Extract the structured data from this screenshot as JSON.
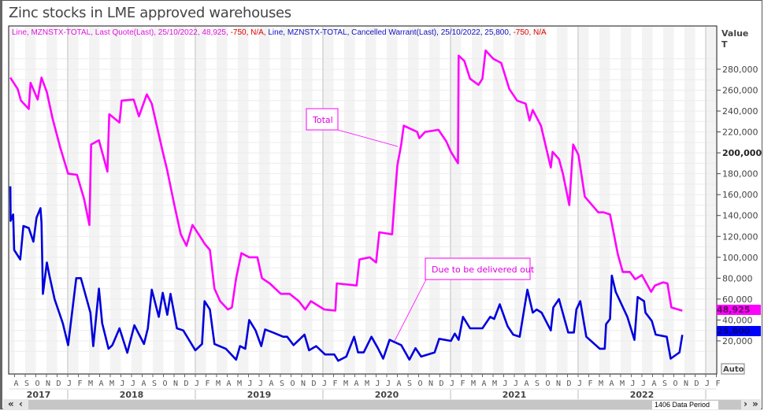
{
  "title": "Zinc stocks in LME approved warehouses",
  "legend": [
    {
      "text": "Line, MZNSTX-TOTAL, Last Quote(Last), 25/10/2022, 48,925, ",
      "color": "#e010e0"
    },
    {
      "text": "-750, N/A, ",
      "color": "#e00000"
    },
    {
      "text": "Line, MZNSTX-TOTAL, Cancelled Warrant(Last), 25/10/2022, 25,800, ",
      "color": "#1010c0"
    },
    {
      "text": "-750, N/A",
      "color": "#e00000"
    }
  ],
  "axis": {
    "title_line1": "Value",
    "title_line2": "T",
    "auto_label": "Auto"
  },
  "last_values": {
    "total": "48,925",
    "cancelled": "25,800"
  },
  "scroll": {
    "period_label": "1406 Data Period",
    "first": "«",
    "prev": "‹",
    "next": "›",
    "last": "»"
  },
  "colors": {
    "total": "#ff00ff",
    "cancelled": "#0000dd",
    "up_red": "#e00000"
  },
  "chart_data": {
    "type": "line",
    "title": "Zinc stocks in LME approved warehouses",
    "ylabel": "Value T",
    "ylim": [
      0,
      290000
    ],
    "y_ticks": [
      "20,000",
      "40,000",
      "60,000",
      "80,000",
      "100,000",
      "120,000",
      "140,000",
      "160,000",
      "180,000",
      "200,000",
      "220,000",
      "240,000",
      "260,000",
      "280,000"
    ],
    "y_tick_values": [
      20000,
      40000,
      60000,
      80000,
      100000,
      120000,
      140000,
      160000,
      180000,
      200000,
      220000,
      240000,
      260000,
      280000
    ],
    "bold_tick": "200,000",
    "x_month_labels": [
      "A",
      "S",
      "O",
      "N",
      "D",
      "J",
      "F",
      "M",
      "A",
      "M",
      "J",
      "J",
      "A",
      "S",
      "O",
      "N",
      "D",
      "J",
      "F",
      "M",
      "A",
      "M",
      "J",
      "J",
      "A",
      "S",
      "O",
      "N",
      "D",
      "J",
      "F",
      "M",
      "A",
      "M",
      "J",
      "J",
      "A",
      "S",
      "O",
      "N",
      "D",
      "J",
      "F",
      "M",
      "A",
      "M",
      "J",
      "J",
      "A",
      "S",
      "O",
      "N",
      "D",
      "J",
      "F",
      "M",
      "A",
      "M",
      "J",
      "J",
      "A",
      "S",
      "O",
      "N",
      "D",
      "J",
      "F"
    ],
    "x_month_start": "2017-08",
    "x_year_labels": [
      "2017",
      "2018",
      "2019",
      "2020",
      "2021",
      "2022"
    ],
    "grid": true,
    "annotations": [
      {
        "text": "Total",
        "series": "total",
        "date": "2020-07-30"
      },
      {
        "text": "Due to be delivered out",
        "series": "cancelled",
        "date": "2020-07-25"
      }
    ],
    "series": [
      {
        "key": "total",
        "name": "Line, MZNSTX-TOTAL, Last Quote(Last)",
        "color": "#ff00ff",
        "points": [
          [
            "2017-07-19",
            272000
          ],
          [
            "2017-08-10",
            261000
          ],
          [
            "2017-08-19",
            250000
          ],
          [
            "2017-09-11",
            242000
          ],
          [
            "2017-09-16",
            267000
          ],
          [
            "2017-10-06",
            251000
          ],
          [
            "2017-10-17",
            272000
          ],
          [
            "2017-11-02",
            258000
          ],
          [
            "2017-11-18",
            233000
          ],
          [
            "2017-12-10",
            205000
          ],
          [
            "2018-01-02",
            180000
          ],
          [
            "2018-01-27",
            179000
          ],
          [
            "2018-02-17",
            156000
          ],
          [
            "2018-03-02",
            131000
          ],
          [
            "2018-03-07",
            208000
          ],
          [
            "2018-03-29",
            212000
          ],
          [
            "2018-04-23",
            182000
          ],
          [
            "2018-04-28",
            237000
          ],
          [
            "2018-05-27",
            229000
          ],
          [
            "2018-06-03",
            250000
          ],
          [
            "2018-07-07",
            251000
          ],
          [
            "2018-07-22",
            235000
          ],
          [
            "2018-08-14",
            256000
          ],
          [
            "2018-08-28",
            247000
          ],
          [
            "2018-09-29",
            201000
          ],
          [
            "2018-10-12",
            183000
          ],
          [
            "2018-11-02",
            150000
          ],
          [
            "2018-11-20",
            122000
          ],
          [
            "2018-12-06",
            111000
          ],
          [
            "2018-12-23",
            131000
          ],
          [
            "2019-01-22",
            116000
          ],
          [
            "2019-01-27",
            113000
          ],
          [
            "2019-02-12",
            107000
          ],
          [
            "2019-02-25",
            70000
          ],
          [
            "2019-03-11",
            58000
          ],
          [
            "2019-04-03",
            50000
          ],
          [
            "2019-04-14",
            52000
          ],
          [
            "2019-04-26",
            80000
          ],
          [
            "2019-05-11",
            104000
          ],
          [
            "2019-06-03",
            100000
          ],
          [
            "2019-06-26",
            100000
          ],
          [
            "2019-07-09",
            80000
          ],
          [
            "2019-08-01",
            75000
          ],
          [
            "2019-09-02",
            65000
          ],
          [
            "2019-09-27",
            65000
          ],
          [
            "2019-10-23",
            58000
          ],
          [
            "2019-11-11",
            50000
          ],
          [
            "2019-11-27",
            58000
          ],
          [
            "2020-01-05",
            50000
          ],
          [
            "2020-02-06",
            49000
          ],
          [
            "2020-02-10",
            75000
          ],
          [
            "2020-04-06",
            73000
          ],
          [
            "2020-04-14",
            98000
          ],
          [
            "2020-05-13",
            100000
          ],
          [
            "2020-06-01",
            95000
          ],
          [
            "2020-06-10",
            124000
          ],
          [
            "2020-07-16",
            122000
          ],
          [
            "2020-07-24",
            158000
          ],
          [
            "2020-08-01",
            188000
          ],
          [
            "2020-08-12",
            208000
          ],
          [
            "2020-08-19",
            226000
          ],
          [
            "2020-09-27",
            220000
          ],
          [
            "2020-10-03",
            214000
          ],
          [
            "2020-10-19",
            220000
          ],
          [
            "2020-11-27",
            222000
          ],
          [
            "2020-12-19",
            211000
          ],
          [
            "2021-01-02",
            201000
          ],
          [
            "2021-01-22",
            190000
          ],
          [
            "2021-01-24",
            293000
          ],
          [
            "2021-02-10",
            288000
          ],
          [
            "2021-02-26",
            271000
          ],
          [
            "2021-03-20",
            265000
          ],
          [
            "2021-04-01",
            271000
          ],
          [
            "2021-04-10",
            298000
          ],
          [
            "2021-05-02",
            290000
          ],
          [
            "2021-05-24",
            286000
          ],
          [
            "2021-06-17",
            261000
          ],
          [
            "2021-07-09",
            250000
          ],
          [
            "2021-08-03",
            247000
          ],
          [
            "2021-08-14",
            231000
          ],
          [
            "2021-08-23",
            241000
          ],
          [
            "2021-09-16",
            226000
          ],
          [
            "2021-10-14",
            186000
          ],
          [
            "2021-10-19",
            201000
          ],
          [
            "2021-11-07",
            194000
          ],
          [
            "2021-11-18",
            180000
          ],
          [
            "2021-12-06",
            150000
          ],
          [
            "2021-12-17",
            208000
          ],
          [
            "2022-01-02",
            198000
          ],
          [
            "2022-01-20",
            158000
          ],
          [
            "2022-02-28",
            143000
          ],
          [
            "2022-03-13",
            143000
          ],
          [
            "2022-04-01",
            141000
          ],
          [
            "2022-04-23",
            103000
          ],
          [
            "2022-05-07",
            86000
          ],
          [
            "2022-05-27",
            86000
          ],
          [
            "2022-06-12",
            79000
          ],
          [
            "2022-07-01",
            83000
          ],
          [
            "2022-07-27",
            67000
          ],
          [
            "2022-08-08",
            73000
          ],
          [
            "2022-09-01",
            76000
          ],
          [
            "2022-09-13",
            75000
          ],
          [
            "2022-09-24",
            52000
          ],
          [
            "2022-10-25",
            48925
          ]
        ]
      },
      {
        "key": "cancelled",
        "name": "Line, MZNSTX-TOTAL, Cancelled Warrant(Last)",
        "color": "#0000dd",
        "points": [
          [
            "2017-07-19",
            168000
          ],
          [
            "2017-07-20",
            135000
          ],
          [
            "2017-07-27",
            141000
          ],
          [
            "2017-07-30",
            107000
          ],
          [
            "2017-08-17",
            98000
          ],
          [
            "2017-08-26",
            130000
          ],
          [
            "2017-09-11",
            128000
          ],
          [
            "2017-09-24",
            115000
          ],
          [
            "2017-10-03",
            138000
          ],
          [
            "2017-10-14",
            147000
          ],
          [
            "2017-10-17",
            133000
          ],
          [
            "2017-10-21",
            65000
          ],
          [
            "2017-11-02",
            95000
          ],
          [
            "2017-11-09",
            83000
          ],
          [
            "2017-11-24",
            60000
          ],
          [
            "2017-12-17",
            37000
          ],
          [
            "2018-01-02",
            16000
          ],
          [
            "2018-01-25",
            80000
          ],
          [
            "2018-02-08",
            80000
          ],
          [
            "2018-03-05",
            47000
          ],
          [
            "2018-03-13",
            15000
          ],
          [
            "2018-03-29",
            70000
          ],
          [
            "2018-04-08",
            37000
          ],
          [
            "2018-04-26",
            12500
          ],
          [
            "2018-05-07",
            16000
          ],
          [
            "2018-05-27",
            32000
          ],
          [
            "2018-06-19",
            8700
          ],
          [
            "2018-07-09",
            35000
          ],
          [
            "2018-08-06",
            17000
          ],
          [
            "2018-08-17",
            32000
          ],
          [
            "2018-08-28",
            69000
          ],
          [
            "2018-09-18",
            43000
          ],
          [
            "2018-09-29",
            66000
          ],
          [
            "2018-10-12",
            45000
          ],
          [
            "2018-10-21",
            65000
          ],
          [
            "2018-11-09",
            32000
          ],
          [
            "2018-11-27",
            30000
          ],
          [
            "2019-01-01",
            11000
          ],
          [
            "2019-01-20",
            17000
          ],
          [
            "2019-01-27",
            58000
          ],
          [
            "2019-02-12",
            50000
          ],
          [
            "2019-02-25",
            17000
          ],
          [
            "2019-03-27",
            12500
          ],
          [
            "2019-04-26",
            2000
          ],
          [
            "2019-05-07",
            15000
          ],
          [
            "2019-05-22",
            12500
          ],
          [
            "2019-06-03",
            40000
          ],
          [
            "2019-06-21",
            30000
          ],
          [
            "2019-07-07",
            15000
          ],
          [
            "2019-07-18",
            31000
          ],
          [
            "2019-08-10",
            28000
          ],
          [
            "2019-09-09",
            24000
          ],
          [
            "2019-09-20",
            24000
          ],
          [
            "2019-10-08",
            16000
          ],
          [
            "2019-11-09",
            26000
          ],
          [
            "2019-11-22",
            11000
          ],
          [
            "2019-12-12",
            15000
          ],
          [
            "2020-01-07",
            7000
          ],
          [
            "2020-02-03",
            7000
          ],
          [
            "2020-02-14",
            1000
          ],
          [
            "2020-03-07",
            5000
          ],
          [
            "2020-03-29",
            24000
          ],
          [
            "2020-04-10",
            9000
          ],
          [
            "2020-04-26",
            9000
          ],
          [
            "2020-05-18",
            24000
          ],
          [
            "2020-06-06",
            13000
          ],
          [
            "2020-06-21",
            3000
          ],
          [
            "2020-07-09",
            21000
          ],
          [
            "2020-08-12",
            16000
          ],
          [
            "2020-09-05",
            2000
          ],
          [
            "2020-09-22",
            13000
          ],
          [
            "2020-10-08",
            5000
          ],
          [
            "2020-11-16",
            9000
          ],
          [
            "2020-11-29",
            22000
          ],
          [
            "2021-01-02",
            20000
          ],
          [
            "2021-01-13",
            27000
          ],
          [
            "2021-01-24",
            21000
          ],
          [
            "2021-02-06",
            43000
          ],
          [
            "2021-02-26",
            32000
          ],
          [
            "2021-04-01",
            32000
          ],
          [
            "2021-04-23",
            43000
          ],
          [
            "2021-05-04",
            41000
          ],
          [
            "2021-05-20",
            55000
          ],
          [
            "2021-06-12",
            34000
          ],
          [
            "2021-06-28",
            26000
          ],
          [
            "2021-07-16",
            24000
          ],
          [
            "2021-08-08",
            69000
          ],
          [
            "2021-08-23",
            47000
          ],
          [
            "2021-09-04",
            50000
          ],
          [
            "2021-09-18",
            47000
          ],
          [
            "2021-10-14",
            30000
          ],
          [
            "2021-10-21",
            52000
          ],
          [
            "2021-11-07",
            60000
          ],
          [
            "2021-12-03",
            28000
          ],
          [
            "2021-12-19",
            28000
          ],
          [
            "2021-12-26",
            50000
          ],
          [
            "2022-01-07",
            58000
          ],
          [
            "2022-01-24",
            24000
          ],
          [
            "2022-02-17",
            17000
          ],
          [
            "2022-03-02",
            12500
          ],
          [
            "2022-03-16",
            12500
          ],
          [
            "2022-03-20",
            36000
          ],
          [
            "2022-04-01",
            41000
          ],
          [
            "2022-04-06",
            82500
          ],
          [
            "2022-04-17",
            67000
          ],
          [
            "2022-05-20",
            43000
          ],
          [
            "2022-06-10",
            21000
          ],
          [
            "2022-06-19",
            62000
          ],
          [
            "2022-07-07",
            58000
          ],
          [
            "2022-07-11",
            47000
          ],
          [
            "2022-07-29",
            39000
          ],
          [
            "2022-08-10",
            26000
          ],
          [
            "2022-09-11",
            24000
          ],
          [
            "2022-09-22",
            3000
          ],
          [
            "2022-10-17",
            9000
          ],
          [
            "2022-10-25",
            25800
          ]
        ]
      }
    ]
  }
}
